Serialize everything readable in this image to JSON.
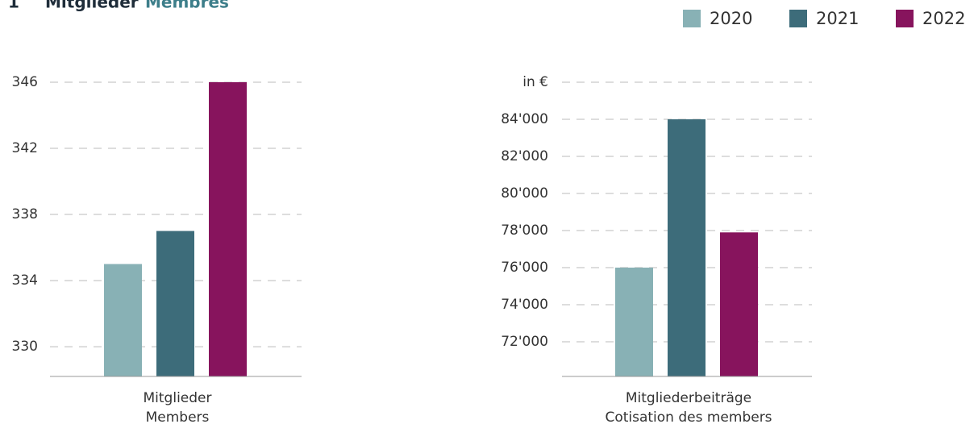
{
  "header": {
    "number": "1",
    "title": "Mitglieder",
    "title_translation": "Membres"
  },
  "chart_data": [
    {
      "type": "bar",
      "categories": [
        "Mitglieder"
      ],
      "category_translations": [
        "Members"
      ],
      "series": [
        {
          "name": "2020",
          "color": "#88b1b5",
          "values": [
            335
          ]
        },
        {
          "name": "2021",
          "color": "#3d6c7a",
          "values": [
            337
          ]
        },
        {
          "name": "2022",
          "color": "#87145d",
          "values": [
            346
          ]
        }
      ],
      "ylim": [
        328.2,
        346
      ],
      "yticks": [
        330,
        334,
        338,
        342,
        346
      ],
      "grid": true
    },
    {
      "type": "bar",
      "categories": [
        "Mitgliederbeiträge"
      ],
      "category_translations": [
        "Cotisation des members"
      ],
      "series": [
        {
          "name": "2020",
          "color": "#88b1b5",
          "values": [
            76000
          ]
        },
        {
          "name": "2021",
          "color": "#3d6c7a",
          "values": [
            84000
          ]
        },
        {
          "name": "2022",
          "color": "#87145d",
          "values": [
            77900
          ]
        }
      ],
      "ylim": [
        70130,
        86000
      ],
      "yticks": [
        {
          "value": 72000,
          "label": "72'000"
        },
        {
          "value": 74000,
          "label": "74'000"
        },
        {
          "value": 76000,
          "label": "76'000"
        },
        {
          "value": 78000,
          "label": "78'000"
        },
        {
          "value": 80000,
          "label": "80'000"
        },
        {
          "value": 82000,
          "label": "82'000"
        },
        {
          "value": 84000,
          "label": "84'000"
        },
        {
          "value": 86000,
          "label": "in €"
        }
      ],
      "grid": true
    }
  ]
}
